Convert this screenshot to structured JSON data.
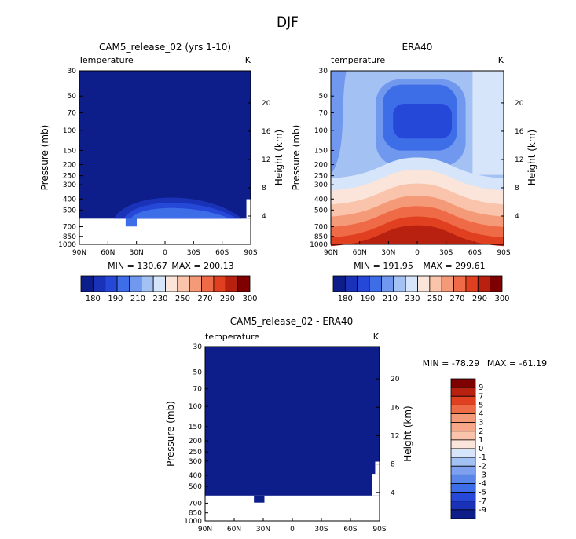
{
  "page_title": "DJF",
  "chart_data": [
    {
      "type": "heatmap",
      "title": "CAM5_release_02 (yrs 1-10)",
      "left_label": "Temperature",
      "right_label": "K",
      "xlabel": "",
      "ylabel_left": "Pressure (mb)",
      "ylabel_right": "Height (km)",
      "x_ticks": [
        "90N",
        "60N",
        "30N",
        "0",
        "30S",
        "60S",
        "90S"
      ],
      "y_ticks": [
        "30",
        "50",
        "70",
        "100",
        "150",
        "200",
        "250",
        "300",
        "400",
        "500",
        "700",
        "850",
        "1000"
      ],
      "height_ticks": [
        "20",
        "16",
        "12",
        "8",
        "4"
      ],
      "min_text": "MIN = 130.67",
      "max_text": "MAX = 200.13",
      "levels": [
        "180",
        "190",
        "210",
        "230",
        "250",
        "270",
        "290",
        "300"
      ],
      "field_description": "Nearly uniform darkest blue (below 180 K) throughout, with blue domes near 300–400 mb over the tropics; no data below ~650 mb."
    },
    {
      "type": "heatmap",
      "title": "ERA40",
      "left_label": "temperature",
      "right_label": "K",
      "xlabel": "",
      "ylabel_left": "Pressure (mb)",
      "ylabel_right": "Height (km)",
      "x_ticks": [
        "90N",
        "60N",
        "30N",
        "0",
        "30S",
        "60S",
        "90S"
      ],
      "y_ticks": [
        "30",
        "50",
        "70",
        "100",
        "150",
        "200",
        "250",
        "300",
        "400",
        "500",
        "700",
        "850",
        "1000"
      ],
      "height_ticks": [
        "20",
        "16",
        "12",
        "8",
        "4"
      ],
      "min_text": "MIN = 191.95",
      "max_text": "MAX = 299.61",
      "levels": [
        "180",
        "190",
        "210",
        "230",
        "250",
        "270",
        "290",
        "300"
      ],
      "field_description": "Cold minimum (~190–200 K) near 100 mb over the equator, warming to ~290–300 K near the surface in the tropics."
    },
    {
      "type": "heatmap",
      "title": "CAM5_release_02 - ERA40",
      "left_label": "temperature",
      "right_label": "K",
      "xlabel": "",
      "ylabel_left": "Pressure (mb)",
      "ylabel_right": "Height (km)",
      "x_ticks": [
        "90N",
        "60N",
        "30N",
        "0",
        "30S",
        "60S",
        "90S"
      ],
      "y_ticks": [
        "30",
        "50",
        "70",
        "100",
        "150",
        "200",
        "250",
        "300",
        "400",
        "500",
        "700",
        "850",
        "1000"
      ],
      "height_ticks": [
        "20",
        "16",
        "12",
        "8",
        "4"
      ],
      "min_text": "MIN = -78.29",
      "max_text": "MAX = -61.19",
      "levels": [
        "9",
        "7",
        "5",
        "4",
        "3",
        "2",
        "1",
        "0",
        "-1",
        "-2",
        "-3",
        "-4",
        "-5",
        "-7",
        "-9"
      ],
      "field_description": "Entire domain below -9 K (darkest blue); no data below ~650 mb."
    }
  ],
  "colors": {
    "abs_scale": [
      "#0d1d8a",
      "#1a32b8",
      "#2548d8",
      "#3d6ee8",
      "#6f98ee",
      "#a3c1f3",
      "#d6e5f9",
      "#fbe5da",
      "#f9c4ab",
      "#f59a78",
      "#ef6a46",
      "#e0401f",
      "#b8200f",
      "#7f0000"
    ],
    "diff_scale": [
      "#0d1d8a",
      "#1a32b8",
      "#2548d8",
      "#3d6ee8",
      "#5a86ea",
      "#7da1ef",
      "#a3c1f3",
      "#d6e5f9",
      "#fbe5da",
      "#f9c4ab",
      "#f7a888",
      "#f59a78",
      "#ef6a46",
      "#e0401f",
      "#b8200f",
      "#7f0000"
    ],
    "missing": "#ffffff"
  }
}
